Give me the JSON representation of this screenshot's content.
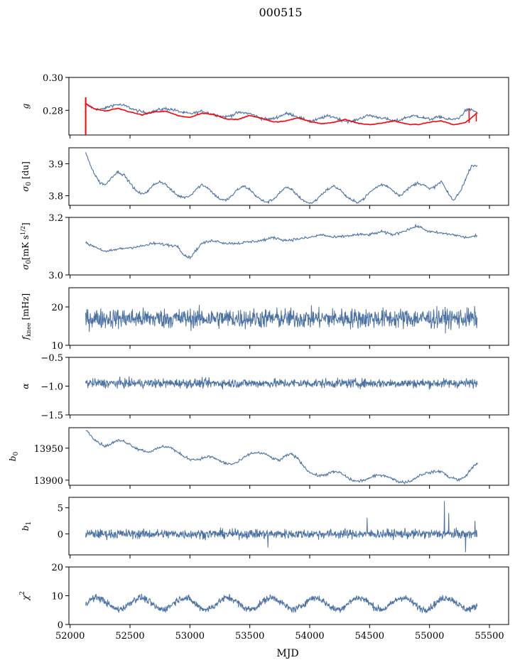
{
  "figure": {
    "title": "000515",
    "xlabel": "MJD",
    "xlim": [
      51990,
      55660
    ],
    "xticks": [
      52000,
      52500,
      53000,
      53500,
      54000,
      54500,
      55000,
      55500
    ],
    "series_color": "#4c72a4",
    "model_color": "#ff0000"
  },
  "chart_data": [
    {
      "type": "line",
      "ylabel": "g",
      "ylim": [
        0.265,
        0.3
      ],
      "yticks": [
        "0.28",
        "0.30"
      ],
      "ytick_values": [
        0.28,
        0.3
      ],
      "series": [
        {
          "kind": "data",
          "x": [
            52130,
            52160,
            52200,
            52250,
            52300,
            52350,
            52400,
            52450,
            52500,
            52550,
            52600,
            52650,
            52700,
            52750,
            52800,
            52850,
            52900,
            52950,
            53000,
            53050,
            53100,
            53150,
            53200,
            53250,
            53300,
            53350,
            53400,
            53450,
            53500,
            53550,
            53600,
            53650,
            53700,
            53750,
            53800,
            53850,
            53900,
            53950,
            54000,
            54050,
            54100,
            54150,
            54200,
            54250,
            54300,
            54350,
            54400,
            54450,
            54500,
            54550,
            54600,
            54650,
            54700,
            54750,
            54800,
            54850,
            54900,
            54950,
            55000,
            55050,
            55100,
            55150,
            55200,
            55250,
            55300,
            55350,
            55400
          ],
          "values": [
            0.284,
            0.2825,
            0.281,
            0.2805,
            0.2815,
            0.283,
            0.2835,
            0.283,
            0.2815,
            0.28,
            0.279,
            0.2785,
            0.2795,
            0.2805,
            0.281,
            0.2805,
            0.2795,
            0.2785,
            0.278,
            0.2785,
            0.2795,
            0.2785,
            0.2775,
            0.2765,
            0.276,
            0.277,
            0.2785,
            0.2785,
            0.278,
            0.2765,
            0.275,
            0.2745,
            0.275,
            0.2765,
            0.278,
            0.2775,
            0.276,
            0.2745,
            0.2735,
            0.274,
            0.2755,
            0.2765,
            0.276,
            0.2745,
            0.2735,
            0.273,
            0.2745,
            0.276,
            0.277,
            0.276,
            0.2755,
            0.2745,
            0.2735,
            0.274,
            0.2755,
            0.2765,
            0.2765,
            0.2755,
            0.2745,
            0.2755,
            0.276,
            0.2745,
            0.2745,
            0.2755,
            0.28,
            0.2805,
            0.2785
          ]
        },
        {
          "kind": "model",
          "x": [
            52130,
            52200,
            52300,
            52400,
            52500,
            52600,
            52700,
            52800,
            52900,
            53000,
            53100,
            53200,
            53300,
            53400,
            53500,
            53600,
            53700,
            53800,
            53900,
            54000,
            54100,
            54200,
            54300,
            54400,
            54500,
            54600,
            54700,
            54800,
            54900,
            55000,
            55100,
            55200,
            55300,
            55400
          ],
          "values": [
            0.284,
            0.281,
            0.2795,
            0.2812,
            0.279,
            0.2772,
            0.279,
            0.2794,
            0.2768,
            0.2756,
            0.2782,
            0.2774,
            0.2748,
            0.2745,
            0.2768,
            0.2752,
            0.2728,
            0.2735,
            0.2756,
            0.2732,
            0.2718,
            0.2728,
            0.2744,
            0.2722,
            0.2712,
            0.2722,
            0.2736,
            0.2718,
            0.2712,
            0.2728,
            0.2736,
            0.2712,
            0.2725,
            0.2785
          ]
        }
      ]
    },
    {
      "type": "line",
      "ylabel": "σ0 [du]",
      "ylim": [
        3.77,
        3.95
      ],
      "yticks": [
        "3.8",
        "3.9"
      ],
      "ytick_values": [
        3.8,
        3.9
      ],
      "x": [
        52130,
        52150,
        52200,
        52250,
        52300,
        52350,
        52400,
        52450,
        52500,
        52550,
        52600,
        52650,
        52700,
        52750,
        52800,
        52850,
        52900,
        52950,
        53000,
        53050,
        53100,
        53150,
        53200,
        53250,
        53300,
        53350,
        53400,
        53450,
        53500,
        53550,
        53600,
        53650,
        53700,
        53750,
        53800,
        53850,
        53900,
        53950,
        54000,
        54050,
        54100,
        54150,
        54200,
        54250,
        54300,
        54350,
        54400,
        54450,
        54500,
        54550,
        54600,
        54650,
        54700,
        54750,
        54800,
        54850,
        54900,
        54950,
        55000,
        55050,
        55100,
        55150,
        55200,
        55250,
        55300,
        55350,
        55400
      ],
      "values": [
        3.935,
        3.915,
        3.87,
        3.84,
        3.835,
        3.86,
        3.875,
        3.865,
        3.84,
        3.815,
        3.805,
        3.815,
        3.835,
        3.845,
        3.835,
        3.815,
        3.8,
        3.795,
        3.8,
        3.82,
        3.835,
        3.825,
        3.805,
        3.79,
        3.785,
        3.8,
        3.82,
        3.83,
        3.82,
        3.8,
        3.785,
        3.78,
        3.79,
        3.81,
        3.825,
        3.82,
        3.8,
        3.785,
        3.775,
        3.785,
        3.805,
        3.82,
        3.83,
        3.82,
        3.8,
        3.785,
        3.78,
        3.79,
        3.81,
        3.825,
        3.835,
        3.83,
        3.815,
        3.8,
        3.815,
        3.83,
        3.84,
        3.835,
        3.82,
        3.83,
        3.845,
        3.81,
        3.785,
        3.81,
        3.85,
        3.895,
        3.895
      ]
    },
    {
      "type": "line",
      "ylabel": "σ0[mK s^1/2]",
      "ylim": [
        3.0,
        3.2
      ],
      "yticks": [
        "3.0",
        "3.2"
      ],
      "ytick_values": [
        3.0,
        3.2
      ],
      "x": [
        52130,
        52200,
        52300,
        52400,
        52500,
        52600,
        52700,
        52800,
        52900,
        52950,
        53000,
        53050,
        53100,
        53200,
        53300,
        53400,
        53500,
        53600,
        53700,
        53800,
        53900,
        54000,
        54100,
        54200,
        54300,
        54400,
        54500,
        54600,
        54700,
        54800,
        54900,
        55000,
        55100,
        55200,
        55300,
        55400
      ],
      "values": [
        3.11,
        3.1,
        3.08,
        3.09,
        3.095,
        3.1,
        3.11,
        3.105,
        3.1,
        3.07,
        3.06,
        3.085,
        3.11,
        3.12,
        3.11,
        3.11,
        3.115,
        3.12,
        3.13,
        3.12,
        3.125,
        3.13,
        3.14,
        3.13,
        3.135,
        3.14,
        3.14,
        3.15,
        3.14,
        3.155,
        3.17,
        3.15,
        3.145,
        3.14,
        3.13,
        3.135
      ]
    },
    {
      "type": "line",
      "ylabel": "f_knee [mHz]",
      "ylim": [
        10,
        25
      ],
      "yticks": [
        "10",
        "20"
      ],
      "ytick_values": [
        10,
        20
      ],
      "x_range": [
        52130,
        55400
      ],
      "mean": 17,
      "noise_amplitude": 2.6
    },
    {
      "type": "line",
      "ylabel": "α",
      "ylim": [
        -1.5,
        -0.5
      ],
      "yticks": [
        "−1.5",
        "−1.0",
        "−0.5"
      ],
      "ytick_values": [
        -1.5,
        -1.0,
        -0.5
      ],
      "x_range": [
        52130,
        55400
      ],
      "mean": -0.95,
      "noise_amplitude": 0.08
    },
    {
      "type": "line",
      "ylabel": "b0",
      "ylim": [
        13892,
        13982
      ],
      "yticks": [
        "13900",
        "13950"
      ],
      "ytick_values": [
        13900,
        13950
      ],
      "x": [
        52130,
        52150,
        52200,
        52250,
        52300,
        52350,
        52400,
        52450,
        52500,
        52550,
        52600,
        52650,
        52700,
        52750,
        52800,
        52850,
        52900,
        52950,
        53000,
        53050,
        53100,
        53150,
        53200,
        53250,
        53300,
        53350,
        53400,
        53450,
        53500,
        53550,
        53600,
        53650,
        53700,
        53750,
        53800,
        53850,
        53900,
        53950,
        54000,
        54050,
        54100,
        54150,
        54200,
        54250,
        54300,
        54350,
        54400,
        54450,
        54500,
        54550,
        54600,
        54650,
        54700,
        54750,
        54800,
        54850,
        54900,
        54950,
        55000,
        55050,
        55100,
        55150,
        55200,
        55250,
        55300,
        55350,
        55400
      ],
      "values": [
        13980,
        13975,
        13965,
        13957,
        13953,
        13958,
        13962,
        13961,
        13956,
        13950,
        13947,
        13944,
        13947,
        13951,
        13953,
        13950,
        13943,
        13937,
        13933,
        13932,
        13934,
        13937,
        13935,
        13930,
        13926,
        13925,
        13928,
        13935,
        13941,
        13943,
        13942,
        13939,
        13933,
        13931,
        13938,
        13941,
        13934,
        13922,
        13912,
        13908,
        13907,
        13910,
        13913,
        13912,
        13906,
        13900,
        13898,
        13900,
        13903,
        13907,
        13908,
        13906,
        13901,
        13897,
        13897,
        13899,
        13906,
        13910,
        13912,
        13913,
        13914,
        13906,
        13903,
        13900,
        13906,
        13918,
        13927
      ]
    },
    {
      "type": "line",
      "ylabel": "b1",
      "ylim": [
        -4,
        7
      ],
      "yticks": [
        "0",
        "5"
      ],
      "ytick_values": [
        0,
        5
      ],
      "x_range": [
        52130,
        55400
      ],
      "mean": 0,
      "noise_amplitude": 0.9,
      "spikes": [
        {
          "x": 55125,
          "y": 6.3
        },
        {
          "x": 55160,
          "y": 4.0
        },
        {
          "x": 54480,
          "y": 3.1
        },
        {
          "x": 53650,
          "y": -2.6
        },
        {
          "x": 55300,
          "y": -3.5
        },
        {
          "x": 55380,
          "y": 2.5
        }
      ]
    },
    {
      "type": "line",
      "ylabel": "χ²",
      "ylim": [
        0,
        20
      ],
      "yticks": [
        "0",
        "10",
        "20"
      ],
      "ytick_values": [
        0,
        10,
        20
      ],
      "x_range": [
        52130,
        55400
      ],
      "mean": 7.3,
      "oscillation_amplitude": 2.0,
      "oscillation_period_days": 365,
      "noise_amplitude": 1.2
    }
  ]
}
